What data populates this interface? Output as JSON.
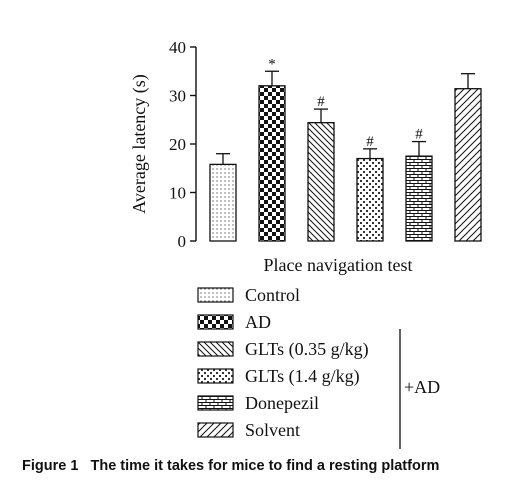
{
  "chart_data": {
    "type": "bar",
    "xlabel": "Place navigation test",
    "ylabel": "Average latency (s)",
    "ylim": [
      0,
      40
    ],
    "yticks": [
      0,
      10,
      20,
      30,
      40
    ],
    "categories": [
      "Control",
      "AD",
      "GLTs (0.35 g/kg)",
      "GLTs (1.4 g/kg)",
      "Donepezil",
      "Solvent"
    ],
    "values": [
      15.8,
      32.0,
      24.4,
      17.0,
      17.5,
      31.4
    ],
    "errors": [
      2.2,
      3.0,
      2.8,
      2.0,
      3.0,
      3.1
    ],
    "markers": [
      "",
      "*",
      "#",
      "#",
      "#",
      ""
    ],
    "patterns": [
      "dots",
      "checker",
      "diag-back",
      "small-check",
      "brick",
      "diag-fwd"
    ],
    "legend": {
      "placement": "bottom",
      "entries": [
        "Control",
        "AD",
        "GLTs (0.35 g/kg)",
        "GLTs (1.4 g/kg)",
        "Donepezil",
        "Solvent"
      ],
      "group_label": "+AD"
    },
    "grid": false
  },
  "caption": "Figure 1   The time it takes for mice to find a resting platform"
}
